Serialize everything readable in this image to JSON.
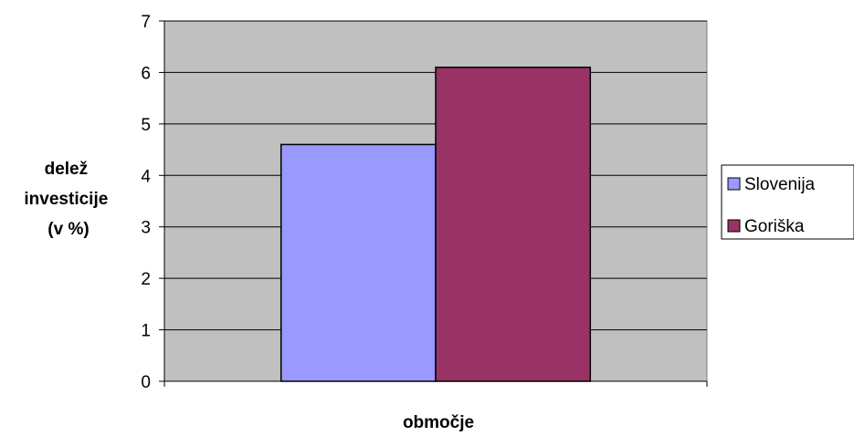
{
  "chart_data": {
    "type": "bar",
    "categories": [
      ""
    ],
    "series": [
      {
        "name": "Slovenija",
        "values": [
          4.6
        ],
        "color": "#9999ff"
      },
      {
        "name": "Goriška",
        "values": [
          6.1
        ],
        "color": "#993366"
      }
    ],
    "title": "",
    "xlabel": "območje",
    "ylabel_lines": [
      "delež",
      "investicije",
      "(v %)"
    ],
    "ylim": [
      0,
      7
    ],
    "yticks": [
      0,
      1,
      2,
      3,
      4,
      5,
      6,
      7
    ],
    "grid": true,
    "legend": "right",
    "plot_background": "#c0c0c0"
  }
}
